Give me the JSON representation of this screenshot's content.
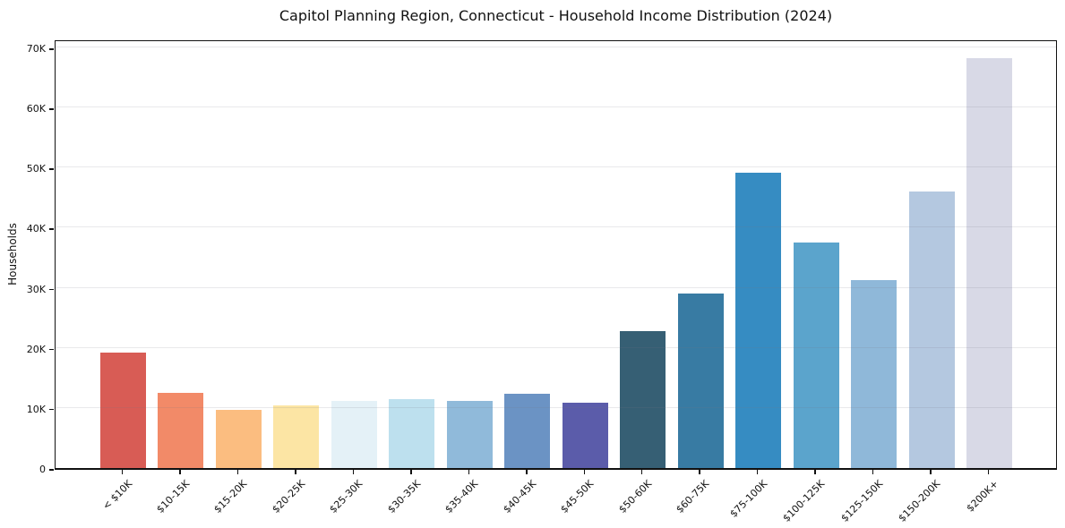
{
  "chart_data": {
    "type": "bar",
    "title": "Capitol Planning Region, Connecticut - Household Income Distribution (2024)",
    "xlabel": "",
    "ylabel": "Households",
    "categories": [
      "< $10K",
      "$10-15K",
      "$15-20K",
      "$20-25K",
      "$25-30K",
      "$30-35K",
      "$35-40K",
      "$40-45K",
      "$45-50K",
      "$50-60K",
      "$60-75K",
      "$75-100K",
      "$100-125K",
      "$125-150K",
      "$150-200K",
      "$200K+"
    ],
    "values": [
      19200,
      12500,
      9700,
      10500,
      11200,
      11400,
      11200,
      12300,
      10900,
      22800,
      29100,
      49100,
      37500,
      31300,
      46000,
      68200
    ],
    "bar_colors": [
      "#d85c55",
      "#f28a68",
      "#fbbd80",
      "#fce5a4",
      "#e4f1f7",
      "#bde0ee",
      "#90bada",
      "#6b93c4",
      "#5b5caa",
      "#365f74",
      "#387ba3",
      "#368cc2",
      "#5ba4cc",
      "#8fb8d9",
      "#b4c8e0",
      "#d8d9e6"
    ],
    "ylim": [
      0,
      71500
    ],
    "ytick_values": [
      0,
      10000,
      20000,
      30000,
      40000,
      50000,
      60000,
      70000
    ],
    "ytick_labels": [
      "0",
      "10K",
      "20K",
      "30K",
      "40K",
      "50K",
      "60K",
      "70K"
    ],
    "grid": "horizontal",
    "legend": "none",
    "background": "#ffffff",
    "frame_color": "#111111"
  }
}
